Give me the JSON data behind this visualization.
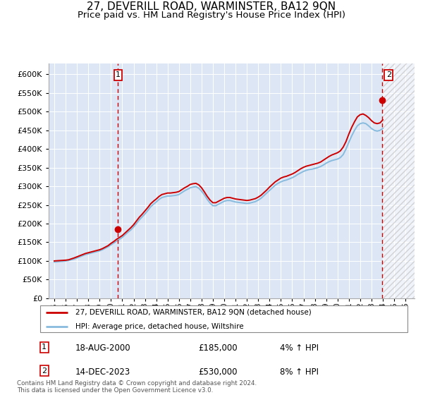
{
  "title": "27, DEVERILL ROAD, WARMINSTER, BA12 9QN",
  "subtitle": "Price paid vs. HM Land Registry's House Price Index (HPI)",
  "title_fontsize": 11,
  "subtitle_fontsize": 9.5,
  "ylabel_ticks": [
    0,
    50000,
    100000,
    150000,
    200000,
    250000,
    300000,
    350000,
    400000,
    450000,
    500000,
    550000,
    600000
  ],
  "ylim": [
    0,
    630000
  ],
  "xlim_start": 1994.5,
  "xlim_end": 2026.8,
  "hatch_start": 2024.0,
  "plot_bg_color": "#dce6f5",
  "grid_color": "#ffffff",
  "sale1_year": 2000.63,
  "sale1_price": 185000,
  "sale2_year": 2023.96,
  "sale2_price": 530000,
  "red_line_color": "#cc0000",
  "blue_line_color": "#88bbdd",
  "legend_label_red": "27, DEVERILL ROAD, WARMINSTER, BA12 9QN (detached house)",
  "legend_label_blue": "HPI: Average price, detached house, Wiltshire",
  "annotation1_label": "18-AUG-2000",
  "annotation1_price": "£185,000",
  "annotation1_hpi": "4% ↑ HPI",
  "annotation2_label": "14-DEC-2023",
  "annotation2_price": "£530,000",
  "annotation2_hpi": "8% ↑ HPI",
  "footer": "Contains HM Land Registry data © Crown copyright and database right 2024.\nThis data is licensed under the Open Government Licence v3.0.",
  "hpi_years": [
    1995,
    1995.25,
    1995.5,
    1995.75,
    1996,
    1996.25,
    1996.5,
    1996.75,
    1997,
    1997.25,
    1997.5,
    1997.75,
    1998,
    1998.25,
    1998.5,
    1998.75,
    1999,
    1999.25,
    1999.5,
    1999.75,
    2000,
    2000.25,
    2000.5,
    2000.75,
    2001,
    2001.25,
    2001.5,
    2001.75,
    2002,
    2002.25,
    2002.5,
    2002.75,
    2003,
    2003.25,
    2003.5,
    2003.75,
    2004,
    2004.25,
    2004.5,
    2004.75,
    2005,
    2005.25,
    2005.5,
    2005.75,
    2006,
    2006.25,
    2006.5,
    2006.75,
    2007,
    2007.25,
    2007.5,
    2007.75,
    2008,
    2008.25,
    2008.5,
    2008.75,
    2009,
    2009.25,
    2009.5,
    2009.75,
    2010,
    2010.25,
    2010.5,
    2010.75,
    2011,
    2011.25,
    2011.5,
    2011.75,
    2012,
    2012.25,
    2012.5,
    2012.75,
    2013,
    2013.25,
    2013.5,
    2013.75,
    2014,
    2014.25,
    2014.5,
    2014.75,
    2015,
    2015.25,
    2015.5,
    2015.75,
    2016,
    2016.25,
    2016.5,
    2016.75,
    2017,
    2017.25,
    2017.5,
    2017.75,
    2018,
    2018.25,
    2018.5,
    2018.75,
    2019,
    2019.25,
    2019.5,
    2019.75,
    2020,
    2020.25,
    2020.5,
    2020.75,
    2021,
    2021.25,
    2021.5,
    2021.75,
    2022,
    2022.25,
    2022.5,
    2022.75,
    2023,
    2023.25,
    2023.5,
    2023.75,
    2024
  ],
  "hpi_values": [
    97000,
    97500,
    98500,
    99000,
    100000,
    101000,
    103000,
    105000,
    108000,
    111000,
    114000,
    117000,
    119000,
    121000,
    123000,
    125000,
    127000,
    130000,
    134000,
    138000,
    143000,
    148000,
    153000,
    158000,
    163000,
    170000,
    177000,
    183000,
    191000,
    200000,
    210000,
    218000,
    226000,
    235000,
    245000,
    252000,
    258000,
    265000,
    270000,
    272000,
    274000,
    274000,
    275000,
    276000,
    278000,
    283000,
    288000,
    292000,
    296000,
    298000,
    299000,
    295000,
    287000,
    277000,
    265000,
    255000,
    248000,
    248000,
    252000,
    256000,
    260000,
    262000,
    262000,
    260000,
    258000,
    257000,
    256000,
    255000,
    254000,
    255000,
    257000,
    259000,
    263000,
    268000,
    275000,
    282000,
    289000,
    296000,
    303000,
    308000,
    312000,
    315000,
    317000,
    320000,
    323000,
    327000,
    332000,
    336000,
    340000,
    343000,
    345000,
    346000,
    348000,
    350000,
    353000,
    357000,
    362000,
    366000,
    369000,
    371000,
    373000,
    377000,
    385000,
    400000,
    418000,
    435000,
    450000,
    462000,
    468000,
    470000,
    468000,
    462000,
    455000,
    450000,
    448000,
    450000,
    455000
  ],
  "red_years": [
    1995,
    1995.25,
    1995.5,
    1995.75,
    1996,
    1996.25,
    1996.5,
    1996.75,
    1997,
    1997.25,
    1997.5,
    1997.75,
    1998,
    1998.25,
    1998.5,
    1998.75,
    1999,
    1999.25,
    1999.5,
    1999.75,
    2000,
    2000.25,
    2000.5,
    2000.75,
    2001,
    2001.25,
    2001.5,
    2001.75,
    2002,
    2002.25,
    2002.5,
    2002.75,
    2003,
    2003.25,
    2003.5,
    2003.75,
    2004,
    2004.25,
    2004.5,
    2004.75,
    2005,
    2005.25,
    2005.5,
    2005.75,
    2006,
    2006.25,
    2006.5,
    2006.75,
    2007,
    2007.25,
    2007.5,
    2007.75,
    2008,
    2008.25,
    2008.5,
    2008.75,
    2009,
    2009.25,
    2009.5,
    2009.75,
    2010,
    2010.25,
    2010.5,
    2010.75,
    2011,
    2011.25,
    2011.5,
    2011.75,
    2012,
    2012.25,
    2012.5,
    2012.75,
    2013,
    2013.25,
    2013.5,
    2013.75,
    2014,
    2014.25,
    2014.5,
    2014.75,
    2015,
    2015.25,
    2015.5,
    2015.75,
    2016,
    2016.25,
    2016.5,
    2016.75,
    2017,
    2017.25,
    2017.5,
    2017.75,
    2018,
    2018.25,
    2018.5,
    2018.75,
    2019,
    2019.25,
    2019.5,
    2019.75,
    2020,
    2020.25,
    2020.5,
    2020.75,
    2021,
    2021.25,
    2021.5,
    2021.75,
    2022,
    2022.25,
    2022.5,
    2022.75,
    2023,
    2023.25,
    2023.5,
    2023.75,
    2024
  ],
  "red_values": [
    100000,
    100500,
    101000,
    101500,
    102000,
    103000,
    105500,
    108000,
    111000,
    114000,
    117000,
    120000,
    122000,
    124000,
    126000,
    128000,
    130000,
    133000,
    137000,
    141000,
    147000,
    152000,
    158000,
    163000,
    168000,
    175000,
    182000,
    189000,
    197000,
    207000,
    217000,
    225000,
    234000,
    243000,
    253000,
    260000,
    266000,
    273000,
    278000,
    280000,
    282000,
    282000,
    283000,
    284000,
    286000,
    291000,
    296000,
    300000,
    305000,
    307000,
    308000,
    304000,
    296000,
    285000,
    273000,
    263000,
    256000,
    256000,
    260000,
    264000,
    268000,
    270000,
    270000,
    268000,
    266000,
    265000,
    264000,
    263000,
    262000,
    263000,
    265000,
    267000,
    271000,
    276000,
    283000,
    290000,
    298000,
    305000,
    312000,
    317000,
    322000,
    325000,
    327000,
    330000,
    333000,
    337000,
    342000,
    347000,
    351000,
    354000,
    356000,
    358000,
    360000,
    362000,
    365000,
    370000,
    375000,
    380000,
    384000,
    387000,
    390000,
    395000,
    405000,
    420000,
    440000,
    458000,
    473000,
    486000,
    492000,
    494000,
    490000,
    484000,
    476000,
    470000,
    468000,
    470000,
    478000
  ]
}
